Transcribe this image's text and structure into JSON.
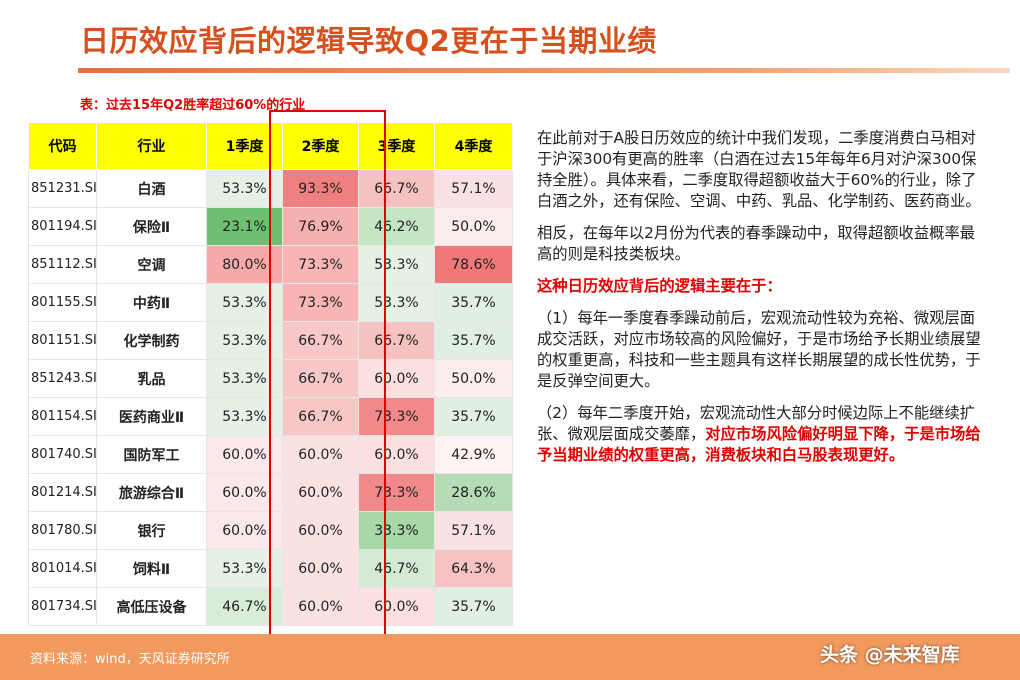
{
  "title": "日历效应背后的逻辑导致Q2更在于当期业绩",
  "table": {
    "caption": "表：过去15年Q2胜率超过60%的行业",
    "headers": [
      "代码",
      "行业",
      "1季度",
      "2季度",
      "3季度",
      "4季度"
    ],
    "rows": [
      {
        "code": "851231.SI",
        "industry": "白酒",
        "q": [
          "53.3%",
          "93.3%",
          "66.7%",
          "57.1%"
        ],
        "bg": [
          "#e5f1e5",
          "#f08080",
          "#f5c2c2",
          "#fae1e4"
        ]
      },
      {
        "code": "801194.SI",
        "industry": "保险Ⅱ",
        "q": [
          "23.1%",
          "76.9%",
          "46.2%",
          "50.0%"
        ],
        "bg": [
          "#6fbf72",
          "#f5b0b0",
          "#c5e5c5",
          "#fbecee"
        ]
      },
      {
        "code": "851112.SI",
        "industry": "空调",
        "q": [
          "80.0%",
          "73.3%",
          "53.3%",
          "78.6%"
        ],
        "bg": [
          "#f7a8a8",
          "#f7b5b5",
          "#e5f1e5",
          "#f07878"
        ]
      },
      {
        "code": "801155.SI",
        "industry": "中药Ⅱ",
        "q": [
          "53.3%",
          "73.3%",
          "53.3%",
          "35.7%"
        ],
        "bg": [
          "#e5f1e5",
          "#f7b5b5",
          "#e5f1e5",
          "#e0efe0"
        ]
      },
      {
        "code": "801151.SI",
        "industry": "化学制药",
        "q": [
          "53.3%",
          "66.7%",
          "66.7%",
          "35.7%"
        ],
        "bg": [
          "#e5f1e5",
          "#f8c8c8",
          "#f5c2c2",
          "#e0efe0"
        ]
      },
      {
        "code": "851243.SI",
        "industry": "乳品",
        "q": [
          "53.3%",
          "66.7%",
          "60.0%",
          "50.0%"
        ],
        "bg": [
          "#e5f1e5",
          "#f8c8c8",
          "#fbe0e0",
          "#fbecee"
        ]
      },
      {
        "code": "801154.SI",
        "industry": "医药商业Ⅱ",
        "q": [
          "53.3%",
          "66.7%",
          "73.3%",
          "35.7%"
        ],
        "bg": [
          "#e5f1e5",
          "#f8c8c8",
          "#f08a8a",
          "#e0efe0"
        ]
      },
      {
        "code": "801740.SI",
        "industry": "国防军工",
        "q": [
          "60.0%",
          "60.0%",
          "60.0%",
          "42.9%"
        ],
        "bg": [
          "#fbe8ea",
          "#fbe2e2",
          "#fbe0e0",
          "#fdf3f3"
        ]
      },
      {
        "code": "801214.SI",
        "industry": "旅游综合Ⅱ",
        "q": [
          "60.0%",
          "60.0%",
          "73.3%",
          "28.6%"
        ],
        "bg": [
          "#fbe8ea",
          "#fbe2e2",
          "#f08a8a",
          "#b5dcb5"
        ]
      },
      {
        "code": "801780.SI",
        "industry": "银行",
        "q": [
          "60.0%",
          "60.0%",
          "33.3%",
          "57.1%"
        ],
        "bg": [
          "#fbe8ea",
          "#fbe2e2",
          "#a8d8a8",
          "#fae1e4"
        ]
      },
      {
        "code": "801014.SI",
        "industry": "饲料Ⅱ",
        "q": [
          "53.3%",
          "60.0%",
          "46.7%",
          "64.3%"
        ],
        "bg": [
          "#e5f1e5",
          "#fbe2e2",
          "#d4ead4",
          "#f7c2c4"
        ]
      },
      {
        "code": "801734.SI",
        "industry": "高低压设备",
        "q": [
          "46.7%",
          "60.0%",
          "60.0%",
          "35.7%"
        ],
        "bg": [
          "#d8ecd8",
          "#fbe2e2",
          "#fbe0e0",
          "#e0efe0"
        ]
      }
    ]
  },
  "text": {
    "p1": "在此前对于A股日历效应的统计中我们发现，二季度消费白马相对于沪深300有更高的胜率（白酒在过去15年每年6月对沪深300保持全胜）。具体来看，二季度取得超额收益大于60%的行业，除了白酒之外，还有保险、空调、中药、乳品、化学制药、医药商业。",
    "p2": "相反，在每年以2月份为代表的春季躁动中，取得超额收益概率最高的则是科技类板块。",
    "p3": "这种日历效应背后的逻辑主要在于：",
    "p4": "（1）每年一季度春季躁动前后，宏观流动性较为充裕、微观层面成交活跃，对应市场较高的风险偏好，于是市场给予长期业绩展望的权重更高，科技和一些主题具有这样长期展望的成长性优势，于是反弹空间更大。",
    "p5_normal": "（2）每年二季度开始，宏观流动性大部分时候边际上不能继续扩张、微观层面成交萎靡，",
    "p5_red": "对应市场风险偏好明显下降，于是市场给予当期业绩的权重更高，消费板块和白马股表现更好。"
  },
  "footer": {
    "source": "资料来源：wind，天风证券研究所",
    "watermark": "头条 @未来智库"
  },
  "colors": {
    "title": "#d6501e",
    "header_bg": "#ffff00",
    "highlight_box": "#e00000",
    "footer_bar": "#f29a5e"
  }
}
